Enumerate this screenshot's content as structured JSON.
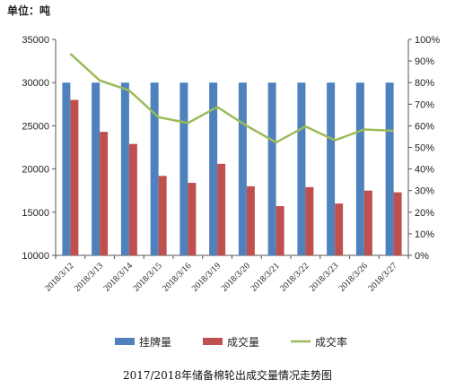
{
  "unit_label": "单位：吨",
  "caption": "2017/2018年储备棉轮出成交量情况走势图",
  "chart_data": {
    "type": "bar",
    "categories": [
      "2018/3/12",
      "2018/3/13",
      "2018/3/14",
      "2018/3/15",
      "2018/3/16",
      "2018/3/19",
      "2018/3/20",
      "2018/3/21",
      "2018/3/22",
      "2018/3/23",
      "2018/3/26",
      "2018/3/27"
    ],
    "series": [
      {
        "name": "挂牌量",
        "type": "bar",
        "axis": "left",
        "color": "#4f81bd",
        "values": [
          30000,
          30000,
          30000,
          30000,
          30000,
          30000,
          30000,
          30000,
          30000,
          30000,
          30000,
          30000
        ]
      },
      {
        "name": "成交量",
        "type": "bar",
        "axis": "left",
        "color": "#c0504d",
        "values": [
          28000,
          24300,
          22900,
          19200,
          18400,
          20600,
          18000,
          15700,
          17900,
          16000,
          17500,
          17300
        ]
      },
      {
        "name": "成交率",
        "type": "line",
        "axis": "right",
        "color": "#9bbb59",
        "values": [
          93.4,
          81,
          76.4,
          64,
          61.3,
          68.7,
          60,
          52.3,
          59.7,
          53.3,
          58.3,
          57.7
        ]
      }
    ],
    "yleft": {
      "min": 10000,
      "max": 35000,
      "step": 5000
    },
    "yright": {
      "min": 0,
      "max": 100,
      "step": 10,
      "suffix": "%"
    },
    "legend_position": "bottom",
    "grid": false
  }
}
